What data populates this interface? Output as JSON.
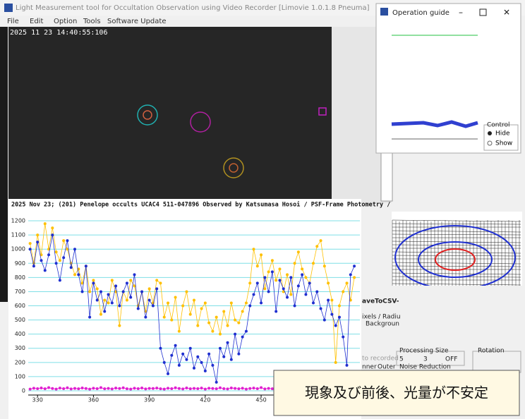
{
  "window": {
    "title": "Light Measurement tool for Occultation Observation using Video Recorder [Limovie 1.0.1.8 Pneuma]",
    "menu": [
      "File",
      "Edit",
      "Option",
      "Tools",
      "Software Update"
    ],
    "timestamp": "2025 11 23 14:40:55:106"
  },
  "operation_guide": {
    "title": "Operation guide",
    "control_label": "Control",
    "options": [
      "Hide",
      "Show"
    ]
  },
  "panel": {
    "save": "aveToCSV-",
    "pixels": "ixels / Radiu",
    "background": "Backgroun",
    "recorded": "to recorded",
    "inner": "nner",
    "outer": "Outer",
    "processing_size": "Processing Size",
    "sizes": [
      "5",
      "3",
      "OFF"
    ],
    "noise_reduction": "Noise Reduction",
    "rotation": "Rotation"
  },
  "callout": "現象及び前後、光量が不安定",
  "chart_data": {
    "type": "line",
    "title": "2025 Nov 23; (201) Penelope occults UCAC4 511-047896 Observed by Katsumasa Hosoi / PSF-Frame Photometry /",
    "x": [
      326,
      328,
      330,
      332,
      334,
      336,
      338,
      340,
      342,
      344,
      346,
      348,
      350,
      352,
      354,
      356,
      358,
      360,
      362,
      364,
      366,
      368,
      370,
      372,
      374,
      376,
      378,
      380,
      382,
      384,
      386,
      388,
      390,
      392,
      394,
      396,
      398,
      400,
      402,
      404,
      406,
      408,
      410,
      412,
      414,
      416,
      418,
      420,
      422,
      424,
      426,
      428,
      430,
      432,
      434,
      436,
      438,
      440,
      442,
      444,
      446,
      448,
      450,
      452,
      454,
      456,
      458,
      460,
      462,
      464,
      466,
      468,
      470,
      472,
      474,
      476,
      478,
      480,
      482,
      484,
      486,
      488,
      490,
      492,
      494,
      496,
      498,
      500
    ],
    "series": [
      {
        "color": "#ffc000",
        "values": [
          1040,
          900,
          1100,
          960,
          1180,
          1000,
          1150,
          980,
          920,
          1060,
          1000,
          900,
          820,
          860,
          760,
          880,
          700,
          780,
          720,
          540,
          640,
          620,
          780,
          700,
          460,
          700,
          640,
          780,
          740,
          600,
          700,
          560,
          720,
          620,
          780,
          760,
          520,
          620,
          500,
          660,
          420,
          600,
          700,
          540,
          640,
          460,
          580,
          620,
          480,
          420,
          520,
          400,
          560,
          460,
          620,
          500,
          480,
          560,
          620,
          760,
          1000,
          880,
          960,
          720,
          840,
          920,
          780,
          860,
          700,
          820,
          680,
          900,
          980,
          860,
          800,
          760,
          900,
          1020,
          1060,
          880,
          760,
          640,
          200,
          600,
          700,
          760,
          640,
          800
        ]
      },
      {
        "color": "#1f2fd0",
        "values": [
          1000,
          880,
          1050,
          920,
          850,
          960,
          1100,
          900,
          780,
          940,
          1060,
          870,
          1000,
          820,
          700,
          880,
          520,
          760,
          640,
          700,
          560,
          680,
          620,
          740,
          600,
          700,
          760,
          660,
          820,
          580,
          700,
          520,
          640,
          600,
          720,
          300,
          200,
          120,
          250,
          320,
          180,
          260,
          220,
          300,
          160,
          240,
          200,
          140,
          260,
          180,
          60,
          300,
          240,
          340,
          220,
          400,
          260,
          380,
          420,
          600,
          680,
          760,
          620,
          800,
          700,
          840,
          560,
          780,
          720,
          660,
          800,
          600,
          740,
          820,
          680,
          760,
          620,
          700,
          580,
          500,
          640,
          540,
          460,
          520,
          380,
          180,
          820,
          880
        ]
      },
      {
        "color": "#e020d0",
        "values": [
          12,
          18,
          15,
          20,
          14,
          22,
          16,
          12,
          19,
          15,
          21,
          13,
          17,
          14,
          20,
          16,
          12,
          18,
          15,
          22,
          14,
          17,
          13,
          19,
          16,
          21,
          14,
          12,
          18,
          15,
          20,
          13,
          17,
          16,
          19,
          14,
          12,
          18,
          15,
          21,
          16,
          13,
          20,
          14,
          17,
          15,
          19,
          12,
          18,
          16,
          14,
          21,
          15,
          13,
          20,
          17,
          14,
          18,
          12,
          16,
          19,
          15,
          22,
          13,
          17,
          14,
          20,
          16,
          12,
          18,
          15,
          19,
          14,
          21,
          16,
          13,
          18,
          15,
          20,
          12,
          17,
          14,
          19,
          16,
          13,
          18,
          15,
          20
        ]
      }
    ],
    "xlim": [
      325,
      503
    ],
    "ylim": [
      -30,
      1275
    ],
    "xticks": [
      330,
      360,
      390,
      420,
      450
    ],
    "yticks": [
      0,
      100,
      200,
      300,
      400,
      500,
      600,
      700,
      800,
      900,
      1000,
      1100,
      1200
    ],
    "grid": true
  }
}
